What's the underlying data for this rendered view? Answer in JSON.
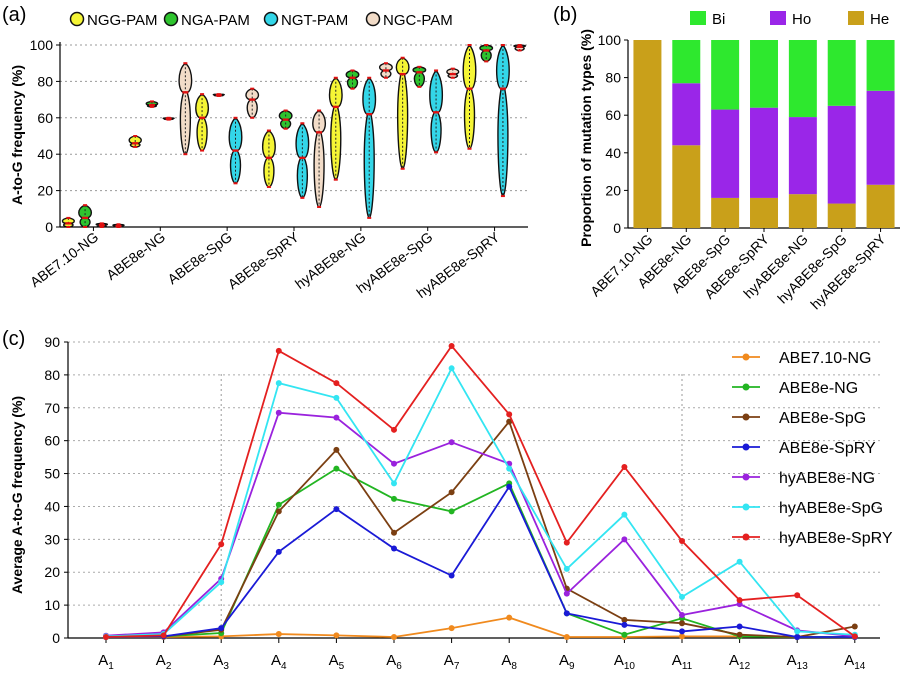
{
  "chart_data": [
    {
      "panel": "(a)",
      "type": "violin",
      "ylabel": "A-to-G frequency (%)",
      "ylim": [
        0,
        100
      ],
      "yticks": [
        0,
        20,
        40,
        60,
        80,
        100
      ],
      "legend": [
        {
          "name": "NGG-PAM",
          "color": "#f5f535"
        },
        {
          "name": "NGA-PAM",
          "color": "#2ec42e"
        },
        {
          "name": "NGT-PAM",
          "color": "#33d6e8"
        },
        {
          "name": "NGC-PAM",
          "color": "#f2dcc8"
        }
      ],
      "categories": [
        "ABE7.10-NG",
        "ABE8e-NG",
        "ABE8e-SpG",
        "ABE8e-SpRY",
        "hyABE8e-NG",
        "hyABE8e-SpG",
        "hyABE8e-SpRY"
      ],
      "groups": [
        {
          "category": "ABE7.10-NG",
          "violins": [
            {
              "pam": "NGG-PAM",
              "min": 0,
              "max": 5,
              "median": 2
            },
            {
              "pam": "NGA-PAM",
              "min": 0,
              "max": 12,
              "median": 5
            },
            {
              "pam": "NGT-PAM",
              "min": 0,
              "max": 2,
              "median": 1
            },
            {
              "pam": "NGC-PAM",
              "min": 0,
              "max": 1.5,
              "median": 0.5
            }
          ]
        },
        {
          "category": "ABE8e-NG",
          "violins": [
            {
              "pam": "NGG-PAM",
              "min": 44,
              "max": 50,
              "median": 46
            },
            {
              "pam": "NGA-PAM",
              "min": 66,
              "max": 69,
              "median": 67
            },
            {
              "pam": "NGT-PAM",
              "min": 59,
              "max": 60,
              "median": 59.5
            },
            {
              "pam": "NGC-PAM",
              "min": 40,
              "max": 90,
              "median": 74
            }
          ]
        },
        {
          "category": "ABE8e-SpG",
          "violins": [
            {
              "pam": "NGG-PAM",
              "min": 42,
              "max": 73,
              "median": 60
            },
            {
              "pam": "NGA-PAM",
              "min": 72,
              "max": 73,
              "median": 72.5
            },
            {
              "pam": "NGT-PAM",
              "min": 24,
              "max": 60,
              "median": 42
            },
            {
              "pam": "NGC-PAM",
              "min": 60,
              "max": 76,
              "median": 70
            }
          ]
        },
        {
          "category": "ABE8e-SpRY",
          "violins": [
            {
              "pam": "NGG-PAM",
              "min": 22,
              "max": 53,
              "median": 38
            },
            {
              "pam": "NGA-PAM",
              "min": 54,
              "max": 64,
              "median": 59
            },
            {
              "pam": "NGT-PAM",
              "min": 16,
              "max": 57,
              "median": 38
            },
            {
              "pam": "NGC-PAM",
              "min": 11,
              "max": 64,
              "median": 52
            }
          ]
        },
        {
          "category": "hyABE8e-NG",
          "violins": [
            {
              "pam": "NGG-PAM",
              "min": 26,
              "max": 82,
              "median": 66
            },
            {
              "pam": "NGA-PAM",
              "min": 76,
              "max": 86,
              "median": 82
            },
            {
              "pam": "NGT-PAM",
              "min": 5,
              "max": 82,
              "median": 62
            },
            {
              "pam": "NGC-PAM",
              "min": 82,
              "max": 90,
              "median": 86
            }
          ]
        },
        {
          "category": "hyABE8e-SpG",
          "violins": [
            {
              "pam": "NGG-PAM",
              "min": 32,
              "max": 93,
              "median": 84
            },
            {
              "pam": "NGA-PAM",
              "min": 77,
              "max": 88,
              "median": 85
            },
            {
              "pam": "NGT-PAM",
              "min": 41,
              "max": 86,
              "median": 63
            },
            {
              "pam": "NGC-PAM",
              "min": 82,
              "max": 87,
              "median": 84
            }
          ]
        },
        {
          "category": "hyABE8e-SpRY",
          "violins": [
            {
              "pam": "NGG-PAM",
              "min": 43,
              "max": 100,
              "median": 76
            },
            {
              "pam": "NGA-PAM",
              "min": 91,
              "max": 100,
              "median": 97
            },
            {
              "pam": "NGT-PAM",
              "min": 17,
              "max": 100,
              "median": 76
            },
            {
              "pam": "NGC-PAM",
              "min": 97,
              "max": 100,
              "median": 99
            }
          ]
        }
      ]
    },
    {
      "panel": "(b)",
      "type": "bar",
      "stacked": true,
      "ylabel": "Proportion of mutation types (%)",
      "ylim": [
        0,
        100
      ],
      "yticks": [
        0,
        20,
        40,
        60,
        80,
        100
      ],
      "categories": [
        "ABE7.10-NG",
        "ABE8e-NG",
        "ABE8e-SpG",
        "ABE8e-SpRY",
        "hyABE8e-NG",
        "hyABE8e-SpG",
        "hyABE8e-SpRY"
      ],
      "series": [
        {
          "name": "He",
          "color": "#c9a01a",
          "values": [
            100,
            44,
            16,
            16,
            18,
            13,
            23
          ]
        },
        {
          "name": "Ho",
          "color": "#9a26e8",
          "values": [
            0,
            33,
            47,
            48,
            41,
            52,
            50
          ]
        },
        {
          "name": "Bi",
          "color": "#2ee82e",
          "values": [
            0,
            23,
            37,
            36,
            41,
            35,
            27
          ]
        }
      ],
      "legend_order": [
        "Bi",
        "Ho",
        "He"
      ]
    },
    {
      "panel": "(c)",
      "type": "line",
      "ylabel": "Average A-to-G  frequency (%)",
      "ylim": [
        0,
        90
      ],
      "yticks": [
        0,
        10,
        20,
        30,
        40,
        50,
        60,
        70,
        80,
        90
      ],
      "x": [
        "1",
        "2",
        "3",
        "4",
        "5",
        "6",
        "7",
        "8",
        "9",
        "10",
        "11",
        "12",
        "13",
        "14"
      ],
      "xprefix": "A",
      "series": [
        {
          "name": "ABE7.10-NG",
          "color": "#f08a1e",
          "values": [
            0.3,
            0.3,
            0.5,
            1.2,
            0.8,
            0.3,
            3.0,
            6.2,
            0.3,
            0.3,
            0.5,
            0.5,
            0.3,
            0.3
          ]
        },
        {
          "name": "ABE8e-NG",
          "color": "#22b522",
          "values": [
            0.3,
            0.5,
            1.5,
            40.5,
            51.5,
            42.3,
            38.5,
            47.0,
            7.5,
            1.0,
            6.0,
            0.5,
            0.3,
            0.3
          ]
        },
        {
          "name": "ABE8e-SpG",
          "color": "#7b3f12",
          "values": [
            0.3,
            0.5,
            2.5,
            38.5,
            57.2,
            32.0,
            44.3,
            65.8,
            15.0,
            5.5,
            4.5,
            1.0,
            0.3,
            3.5
          ]
        },
        {
          "name": "ABE8e-SpRY",
          "color": "#1a1ad6",
          "values": [
            0.3,
            0.5,
            3.0,
            26.2,
            39.2,
            27.2,
            19.0,
            46.0,
            7.5,
            4.0,
            2.0,
            3.5,
            0.3,
            0.3
          ]
        },
        {
          "name": "hyABE8e-NG",
          "color": "#9a22dd",
          "values": [
            0.7,
            1.7,
            18.0,
            68.5,
            67.0,
            53.0,
            59.5,
            53.0,
            13.5,
            30.0,
            7.0,
            10.3,
            2.3,
            0.5
          ]
        },
        {
          "name": "hyABE8e-SpG",
          "color": "#33e5f2",
          "values": [
            0.5,
            1.2,
            17.0,
            77.5,
            73.0,
            47.0,
            82.0,
            51.5,
            21.0,
            37.5,
            12.5,
            23.2,
            2.0,
            1.0
          ]
        },
        {
          "name": "hyABE8e-SpRY",
          "color": "#e42020",
          "values": [
            0.3,
            0.8,
            28.5,
            87.3,
            77.5,
            63.3,
            88.8,
            68.0,
            29.0,
            52.0,
            29.5,
            11.5,
            13.0,
            0.5
          ]
        }
      ]
    }
  ]
}
